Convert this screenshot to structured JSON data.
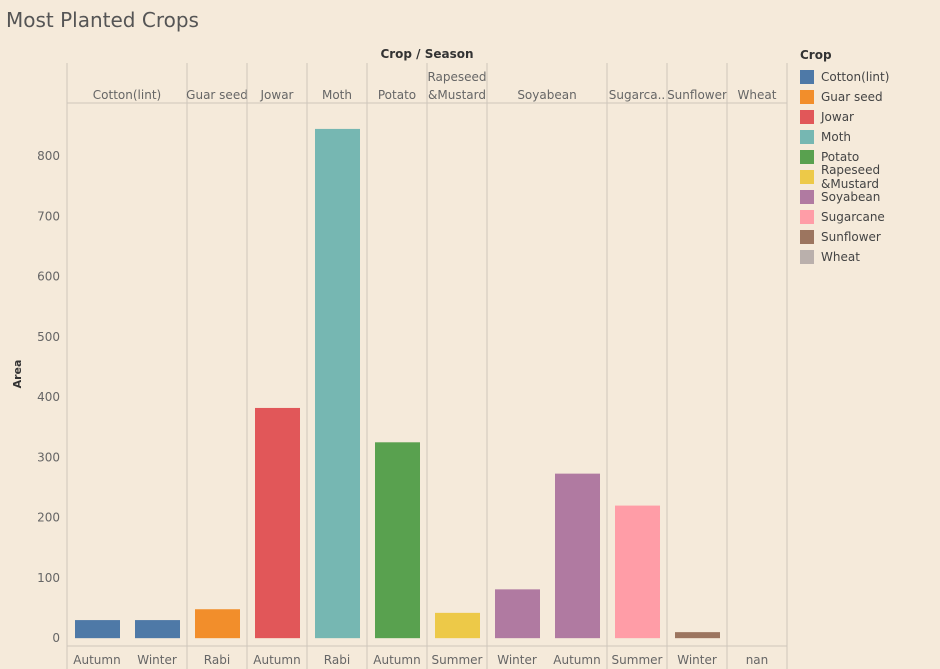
{
  "title": "Most Planted Crops",
  "chart_data": {
    "type": "bar",
    "title": "Most Planted Crops",
    "header": "Crop / Season",
    "ylabel": "Area",
    "ylim": [
      -13,
      888
    ],
    "yticks": [
      0,
      100,
      200,
      300,
      400,
      500,
      600,
      700,
      800
    ],
    "legend_title": "Crop",
    "legend_placement": "right",
    "panels": [
      {
        "crop": "Cotton(lint)",
        "label_lines": [
          "Cotton(lint)"
        ],
        "bars": [
          {
            "season": "Autumn",
            "value": 30
          },
          {
            "season": "Winter",
            "value": 30
          }
        ]
      },
      {
        "crop": "Guar seed",
        "label_lines": [
          "Guar seed"
        ],
        "bars": [
          {
            "season": "Rabi",
            "value": 48
          }
        ]
      },
      {
        "crop": "Jowar",
        "label_lines": [
          "Jowar"
        ],
        "bars": [
          {
            "season": "Autumn",
            "value": 382
          }
        ]
      },
      {
        "crop": "Moth",
        "label_lines": [
          "Moth"
        ],
        "bars": [
          {
            "season": "Rabi",
            "value": 845
          }
        ]
      },
      {
        "crop": "Potato",
        "label_lines": [
          "Potato"
        ],
        "bars": [
          {
            "season": "Autumn",
            "value": 325
          }
        ]
      },
      {
        "crop": "Rapeseed &Mustard",
        "label_lines": [
          "Rapeseed",
          "&Mustard"
        ],
        "bars": [
          {
            "season": "Summer",
            "value": 42
          }
        ]
      },
      {
        "crop": "Soyabean",
        "label_lines": [
          "Soyabean"
        ],
        "bars": [
          {
            "season": "Winter",
            "value": 81
          },
          {
            "season": "Autumn",
            "value": 273
          }
        ]
      },
      {
        "crop": "Sugarcane",
        "label_lines": [
          "Sugarca.."
        ],
        "bars": [
          {
            "season": "Summer",
            "value": 220
          }
        ]
      },
      {
        "crop": "Sunflower",
        "label_lines": [
          "Sunflower"
        ],
        "bars": [
          {
            "season": "Winter",
            "value": 10
          }
        ]
      },
      {
        "crop": "Wheat",
        "label_lines": [
          "Wheat"
        ],
        "bars": [
          {
            "season": "nan",
            "value": 0
          }
        ]
      }
    ],
    "legend": [
      {
        "name": "Cotton(lint)",
        "color": "#4e79a7"
      },
      {
        "name": "Guar seed",
        "color": "#f28e2b"
      },
      {
        "name": "Jowar",
        "color": "#e15759"
      },
      {
        "name": "Moth",
        "color": "#76b7b2"
      },
      {
        "name": "Potato",
        "color": "#59a14f"
      },
      {
        "name": "Rapeseed &Mustard",
        "color": "#edc948"
      },
      {
        "name": "Soyabean",
        "color": "#b07aa1"
      },
      {
        "name": "Sugarcane",
        "color": "#ff9da7"
      },
      {
        "name": "Sunflower",
        "color": "#9c755f"
      },
      {
        "name": "Wheat",
        "color": "#bab0ac"
      }
    ]
  }
}
